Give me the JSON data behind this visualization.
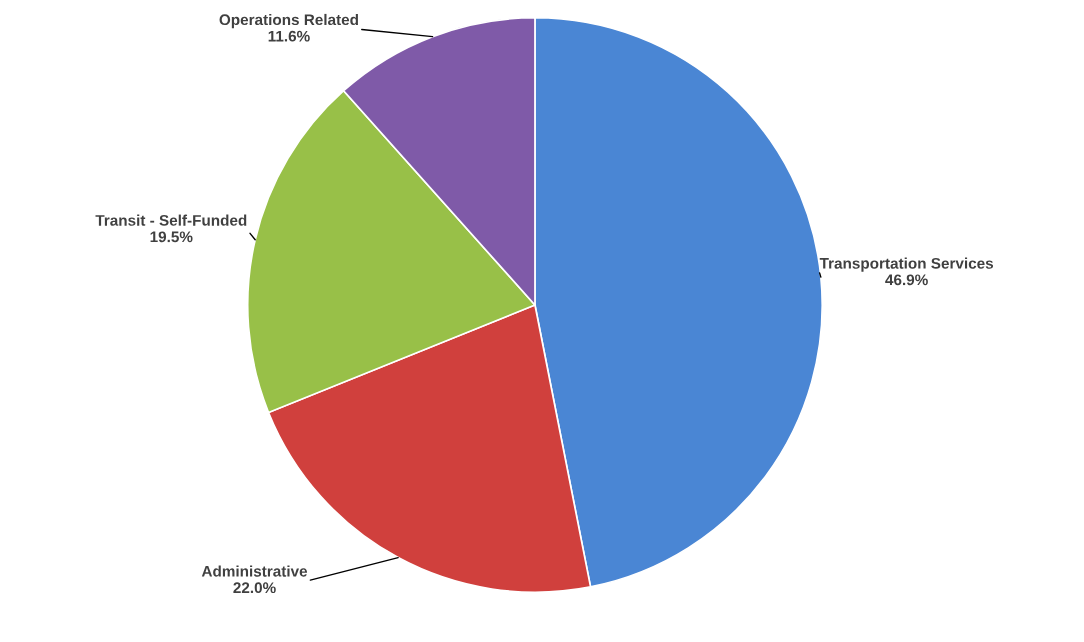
{
  "chart_data": {
    "type": "pie",
    "categories": [
      "Transportation Services",
      "Administrative",
      "Transit - Self-Funded",
      "Operations Related"
    ],
    "values": [
      46.9,
      22.0,
      19.5,
      11.6
    ],
    "value_labels": [
      "46.9%",
      "22.0%",
      "19.5%",
      "11.6%"
    ],
    "colors": [
      "#4a86d4",
      "#d0403d",
      "#98c048",
      "#7f5aa8"
    ],
    "legend": false
  }
}
